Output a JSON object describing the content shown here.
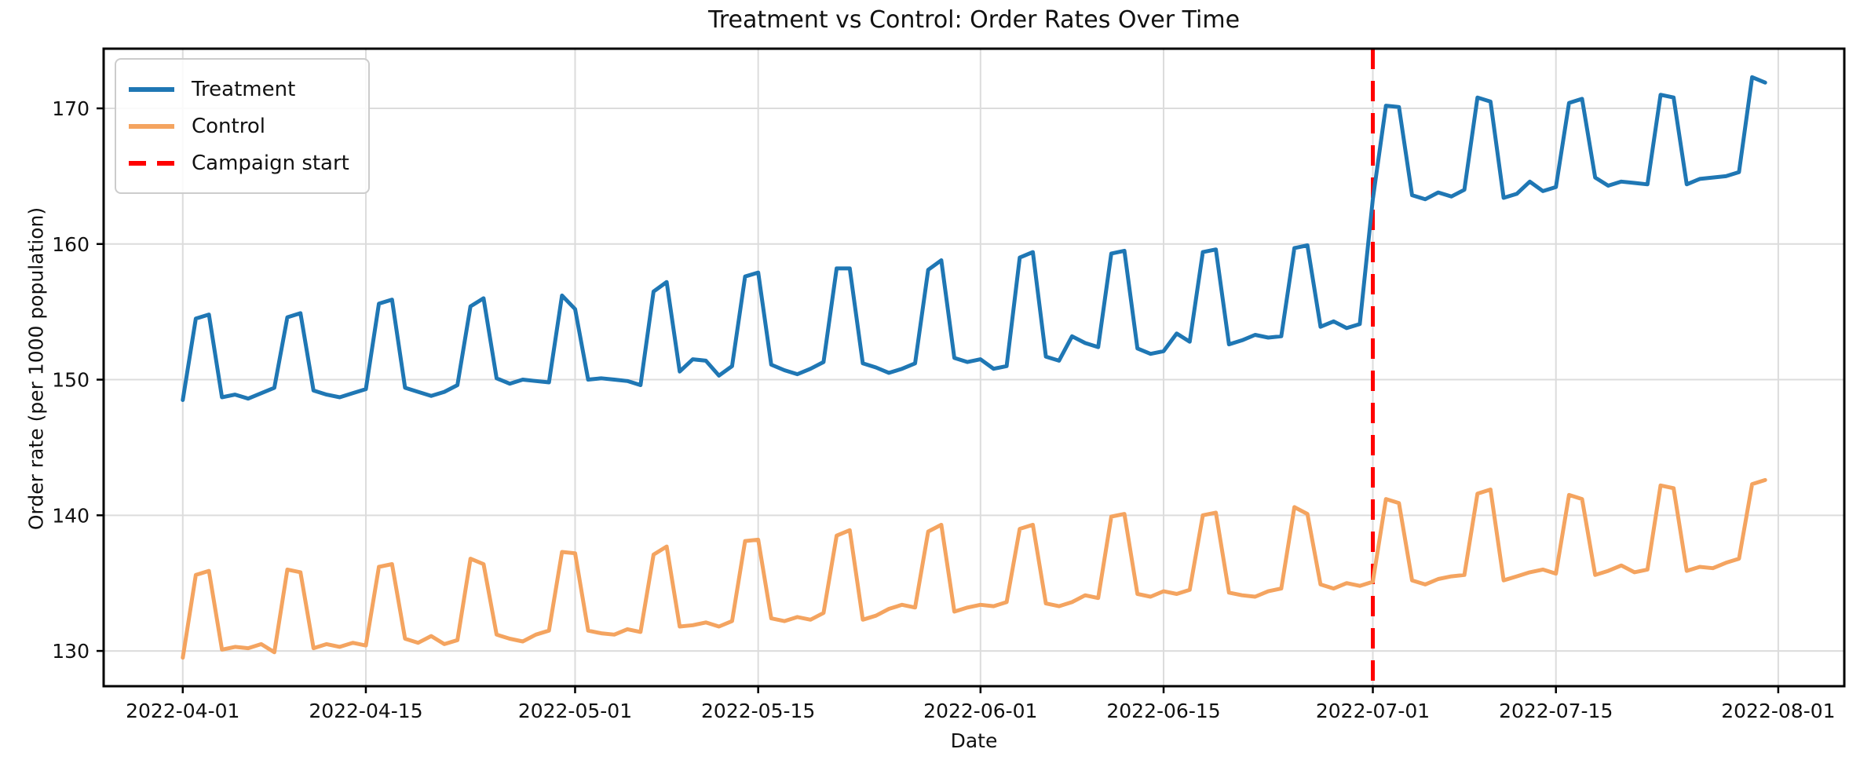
{
  "chart_data": {
    "type": "line",
    "title": "Treatment vs Control: Order Rates Over Time",
    "xlabel": "Date",
    "ylabel": "Order rate (per 1000 population)",
    "grid": true,
    "legend_position": "upper-left",
    "ylim": [
      127.4,
      174.4
    ],
    "y_ticks": [
      130,
      140,
      150,
      160,
      170
    ],
    "x_ticks": [
      "2022-04-01",
      "2022-04-15",
      "2022-05-01",
      "2022-05-15",
      "2022-06-01",
      "2022-06-15",
      "2022-07-01",
      "2022-07-15",
      "2022-08-01"
    ],
    "x": [
      "2022-04-01",
      "2022-04-02",
      "2022-04-03",
      "2022-04-04",
      "2022-04-05",
      "2022-04-06",
      "2022-04-07",
      "2022-04-08",
      "2022-04-09",
      "2022-04-10",
      "2022-04-11",
      "2022-04-12",
      "2022-04-13",
      "2022-04-14",
      "2022-04-15",
      "2022-04-16",
      "2022-04-17",
      "2022-04-18",
      "2022-04-19",
      "2022-04-20",
      "2022-04-21",
      "2022-04-22",
      "2022-04-23",
      "2022-04-24",
      "2022-04-25",
      "2022-04-26",
      "2022-04-27",
      "2022-04-28",
      "2022-04-29",
      "2022-04-30",
      "2022-05-01",
      "2022-05-02",
      "2022-05-03",
      "2022-05-04",
      "2022-05-05",
      "2022-05-06",
      "2022-05-07",
      "2022-05-08",
      "2022-05-09",
      "2022-05-10",
      "2022-05-11",
      "2022-05-12",
      "2022-05-13",
      "2022-05-14",
      "2022-05-15",
      "2022-05-16",
      "2022-05-17",
      "2022-05-18",
      "2022-05-19",
      "2022-05-20",
      "2022-05-21",
      "2022-05-22",
      "2022-05-23",
      "2022-05-24",
      "2022-05-25",
      "2022-05-26",
      "2022-05-27",
      "2022-05-28",
      "2022-05-29",
      "2022-05-30",
      "2022-05-31",
      "2022-06-01",
      "2022-06-02",
      "2022-06-03",
      "2022-06-04",
      "2022-06-05",
      "2022-06-06",
      "2022-06-07",
      "2022-06-08",
      "2022-06-09",
      "2022-06-10",
      "2022-06-11",
      "2022-06-12",
      "2022-06-13",
      "2022-06-14",
      "2022-06-15",
      "2022-06-16",
      "2022-06-17",
      "2022-06-18",
      "2022-06-19",
      "2022-06-20",
      "2022-06-21",
      "2022-06-22",
      "2022-06-23",
      "2022-06-24",
      "2022-06-25",
      "2022-06-26",
      "2022-06-27",
      "2022-06-28",
      "2022-06-29",
      "2022-06-30",
      "2022-07-01",
      "2022-07-02",
      "2022-07-03",
      "2022-07-04",
      "2022-07-05",
      "2022-07-06",
      "2022-07-07",
      "2022-07-08",
      "2022-07-09",
      "2022-07-10",
      "2022-07-11",
      "2022-07-12",
      "2022-07-13",
      "2022-07-14",
      "2022-07-15",
      "2022-07-16",
      "2022-07-17",
      "2022-07-18",
      "2022-07-19",
      "2022-07-20",
      "2022-07-21",
      "2022-07-22",
      "2022-07-23",
      "2022-07-24",
      "2022-07-25",
      "2022-07-26",
      "2022-07-27",
      "2022-07-28",
      "2022-07-29",
      "2022-07-30",
      "2022-07-31"
    ],
    "series": [
      {
        "name": "Treatment",
        "color": "#1f77b4",
        "values": [
          148.5,
          154.5,
          154.8,
          148.7,
          148.9,
          148.6,
          149.0,
          149.4,
          154.6,
          154.9,
          149.2,
          148.9,
          148.7,
          149.0,
          149.3,
          155.6,
          155.9,
          149.4,
          149.1,
          148.8,
          149.1,
          149.6,
          155.4,
          156.0,
          150.1,
          149.7,
          150.0,
          149.9,
          149.8,
          156.2,
          155.2,
          150.0,
          150.1,
          150.0,
          149.9,
          149.6,
          156.5,
          157.2,
          150.6,
          151.5,
          151.4,
          150.3,
          151.0,
          157.6,
          157.9,
          151.1,
          150.7,
          150.4,
          150.8,
          151.3,
          158.2,
          158.2,
          151.2,
          150.9,
          150.5,
          150.8,
          151.2,
          158.1,
          158.8,
          151.6,
          151.3,
          151.5,
          150.8,
          151.0,
          159.0,
          159.4,
          151.7,
          151.4,
          153.2,
          152.7,
          152.4,
          159.3,
          159.5,
          152.3,
          151.9,
          152.1,
          153.4,
          152.8,
          159.4,
          159.6,
          152.6,
          152.9,
          153.3,
          153.1,
          153.2,
          159.7,
          159.9,
          153.9,
          154.3,
          153.8,
          154.1,
          163.3,
          170.2,
          170.1,
          163.6,
          163.3,
          163.8,
          163.5,
          164.0,
          170.8,
          170.5,
          163.4,
          163.7,
          164.6,
          163.9,
          164.2,
          170.4,
          170.7,
          164.9,
          164.3,
          164.6,
          164.5,
          164.4,
          171.0,
          170.8,
          164.4,
          164.8,
          164.9,
          165.0,
          165.3,
          172.3,
          171.9
        ]
      },
      {
        "name": "Control",
        "color": "#f4a460",
        "values": [
          129.5,
          135.6,
          135.9,
          130.1,
          130.3,
          130.2,
          130.5,
          129.9,
          136.0,
          135.8,
          130.2,
          130.5,
          130.3,
          130.6,
          130.4,
          136.2,
          136.4,
          130.9,
          130.6,
          131.1,
          130.5,
          130.8,
          136.8,
          136.4,
          131.2,
          130.9,
          130.7,
          131.2,
          131.5,
          137.3,
          137.2,
          131.5,
          131.3,
          131.2,
          131.6,
          131.4,
          137.1,
          137.7,
          131.8,
          131.9,
          132.1,
          131.8,
          132.2,
          138.1,
          138.2,
          132.4,
          132.2,
          132.5,
          132.3,
          132.8,
          138.5,
          138.9,
          132.3,
          132.6,
          133.1,
          133.4,
          133.2,
          138.8,
          139.3,
          132.9,
          133.2,
          133.4,
          133.3,
          133.6,
          139.0,
          139.3,
          133.5,
          133.3,
          133.6,
          134.1,
          133.9,
          139.9,
          140.1,
          134.2,
          134.0,
          134.4,
          134.2,
          134.5,
          140.0,
          140.2,
          134.3,
          134.1,
          134.0,
          134.4,
          134.6,
          140.6,
          140.1,
          134.9,
          134.6,
          135.0,
          134.8,
          135.1,
          141.2,
          140.9,
          135.2,
          134.9,
          135.3,
          135.5,
          135.6,
          141.6,
          141.9,
          135.2,
          135.5,
          135.8,
          136.0,
          135.7,
          141.5,
          141.2,
          135.6,
          135.9,
          136.3,
          135.8,
          136.0,
          142.2,
          142.0,
          135.9,
          136.2,
          136.1,
          136.5,
          136.8,
          142.3,
          142.6
        ]
      }
    ],
    "vline": {
      "date": "2022-07-01",
      "label": "Campaign start",
      "color": "#ff0000",
      "style": "dashed"
    },
    "legend": [
      {
        "label": "Treatment"
      },
      {
        "label": "Control"
      },
      {
        "label": "Campaign start"
      }
    ],
    "colors": {
      "grid": "#dcdcdc",
      "spine": "#000000",
      "text": "#111111"
    }
  }
}
